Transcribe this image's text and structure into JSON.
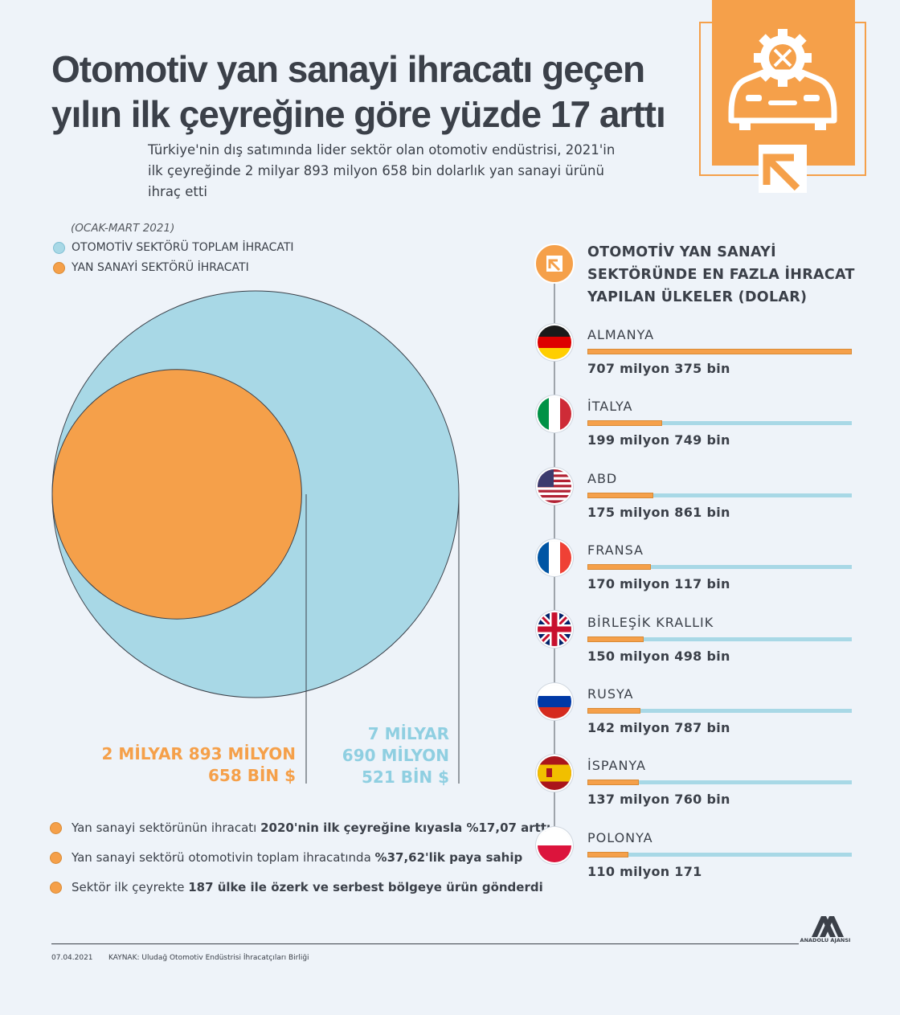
{
  "header": {
    "title": "Otomotiv yan sanayi ihracatı geçen yılın ilk çeyreğine göre yüzde 17 arttı",
    "subtitle": "Türkiye'nin dış satımında lider sektör olan otomotiv endüstrisi, 2021'in ilk çeyreğinde 2 milyar 893 milyon 658 bin dolarlık yan sanayi ürünü ihraç etti",
    "icon": "car-gear-export-icon"
  },
  "colors": {
    "orange": "#f5a04a",
    "blue": "#a8d8e6",
    "text": "#3b4049",
    "background": "#eef3f9"
  },
  "legend": {
    "period": "(OCAK-MART 2021)",
    "items": [
      {
        "label": "OTOMOTİV SEKTÖRÜ TOPLAM İHRACATI",
        "color": "#a8d8e6"
      },
      {
        "label": "YAN SANAYİ SEKTÖRÜ İHRACATI",
        "color": "#f5a04a"
      }
    ]
  },
  "circles": {
    "total_label_lines": [
      "7 MİLYAR",
      "690 MİLYON",
      "521 BİN $"
    ],
    "sub_label_lines": [
      "2 MİLYAR 893 MİLYON",
      "658 BİN $"
    ]
  },
  "chart_data": [
    {
      "type": "bubble",
      "unit": "$",
      "values": [
        {
          "name": "OTOMOTİV SEKTÖRÜ TOPLAM İHRACATI",
          "value": 7690521000,
          "label": "7 MİLYAR 690 MİLYON 521 BİN $"
        },
        {
          "name": "YAN SANAYİ SEKTÖRÜ İHRACATI",
          "value": 2893658000,
          "label": "2 MİLYAR 893 MİLYON 658 BİN $"
        }
      ]
    },
    {
      "type": "bar",
      "title": "OTOMOTİV YAN SANAYİ SEKTÖRÜNDE EN FAZLA İHRACAT YAPILAN ÜLKELER (DOLAR)",
      "categories": [
        "ALMANYA",
        "İTALYA",
        "ABD",
        "FRANSA",
        "BİRLEŞİK KRALLIK",
        "RUSYA",
        "İSPANYA",
        "POLONYA"
      ],
      "values": [
        707375000,
        199749000,
        175861000,
        170117000,
        150498000,
        142787000,
        137760000,
        110171000
      ],
      "value_labels": [
        "707 milyon 375 bin",
        "199 milyon 749 bin",
        "175 milyon 861 bin",
        "170 milyon 117 bin",
        "150 milyon 498 bin",
        "142 milyon 787 bin",
        "137 milyon 760 bin",
        "110 milyon 171"
      ],
      "xlim": [
        0,
        707375000
      ]
    }
  ],
  "bullets": [
    {
      "text": "Yan sanayi sektörünün ihracatı ",
      "bold": "2020'nin ilk çeyreğine kıyasla %17,07 arttı"
    },
    {
      "text": "Yan sanayi sektörü otomotivin toplam ihracatında ",
      "bold": "%37,62'lik paya sahip"
    },
    {
      "text": "Sektör ilk çeyrekte ",
      "bold": "187 ülke ile özerk ve serbest bölgeye ürün gönderdi"
    }
  ],
  "footer": {
    "date": "07.04.2021",
    "source": "KAYNAK: Uludağ Otomotiv Endüstrisi İhracatçıları Birliği",
    "logo_text": "ANADOLU AJANSI",
    "logo_icon": "anadolu-agency-logo-icon"
  }
}
